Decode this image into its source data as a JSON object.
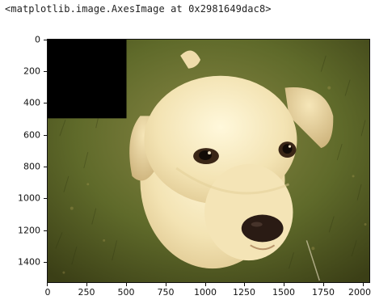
{
  "output": {
    "text": "<matplotlib.image.AxesImage at 0x2981649dac8>"
  },
  "axes": {
    "y_ticks": [
      "0",
      "200",
      "400",
      "600",
      "800",
      "1000",
      "1200",
      "1400"
    ],
    "x_ticks": [
      "0",
      "250",
      "500",
      "750",
      "1000",
      "1250",
      "1500",
      "1750",
      "2000"
    ],
    "xlim": [
      0,
      2048
    ],
    "ylim": [
      1536,
      0
    ]
  },
  "image": {
    "subject": "puppy",
    "masked_region_color": "#000000"
  }
}
